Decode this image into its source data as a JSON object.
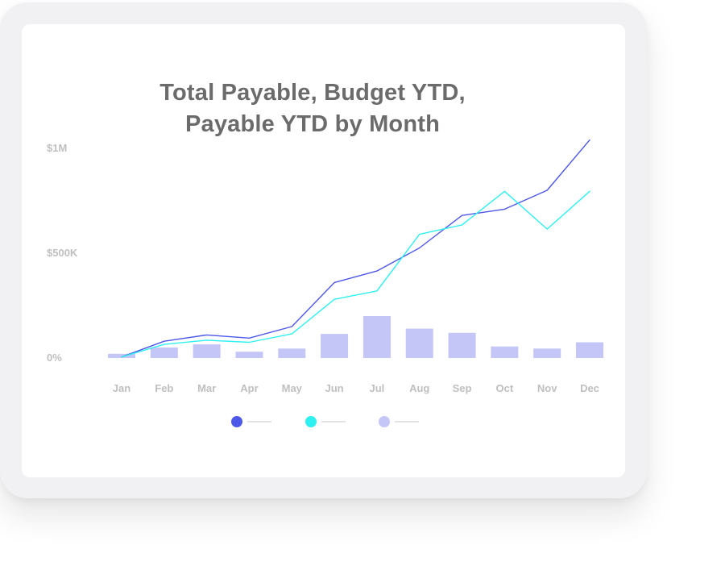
{
  "colors": {
    "total_payable": "#4d57e8",
    "budget_ytd": "#2ef0f0",
    "payable_ytd": "#c3c6f7",
    "tick_text": "#bfbfbf",
    "legend_line": "#dcdcdc"
  },
  "chart_data": {
    "type": "bar",
    "title_lines": [
      "Total Payable, Budget YTD,",
      "Payable YTD by Month"
    ],
    "xlabel": "",
    "ylabel": "",
    "ylim": [
      0,
      1000000
    ],
    "y_ticks": [
      {
        "value": 0,
        "label": "0%"
      },
      {
        "value": 500000,
        "label": "$500K"
      },
      {
        "value": 1000000,
        "label": "$1M"
      }
    ],
    "categories": [
      "Jan",
      "Feb",
      "Mar",
      "Apr",
      "May",
      "Jun",
      "Jul",
      "Aug",
      "Sep",
      "Oct",
      "Nov",
      "Dec"
    ],
    "grid": false,
    "legend_position": "bottom",
    "series": [
      {
        "type": "line",
        "color_key": "total_payable",
        "values": [
          5000,
          80000,
          110000,
          95000,
          150000,
          360000,
          415000,
          525000,
          680000,
          710000,
          800000,
          1040000
        ]
      },
      {
        "type": "line",
        "color_key": "budget_ytd",
        "values": [
          5000,
          65000,
          85000,
          75000,
          115000,
          280000,
          320000,
          590000,
          635000,
          795000,
          615000,
          795000
        ]
      },
      {
        "type": "bar",
        "color_key": "payable_ytd",
        "values": [
          20000,
          50000,
          65000,
          30000,
          45000,
          115000,
          200000,
          140000,
          120000,
          55000,
          45000,
          75000
        ]
      }
    ]
  }
}
